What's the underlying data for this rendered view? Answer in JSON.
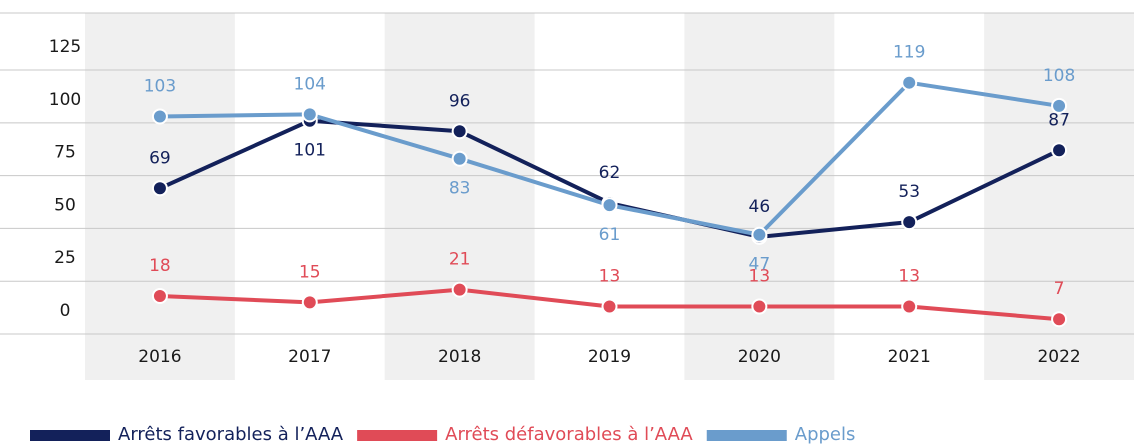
{
  "chart_data": {
    "type": "line",
    "categories": [
      "2016",
      "2017",
      "2018",
      "2019",
      "2020",
      "2021",
      "2022"
    ],
    "series": [
      {
        "name": "Arrêts favorables à l’AAA",
        "color": "#13215a",
        "values": [
          69,
          101,
          96,
          62,
          46,
          53,
          87
        ]
      },
      {
        "name": "Arrêts défavorables à l’AAA",
        "color": "#e04b57",
        "values": [
          18,
          15,
          21,
          13,
          13,
          13,
          7
        ]
      },
      {
        "name": "Appels",
        "color": "#6a9ccc",
        "values": [
          103,
          104,
          83,
          61,
          47,
          119,
          108
        ]
      }
    ],
    "ylim": [
      0,
      152
    ],
    "yticks": [
      0,
      25,
      50,
      75,
      100,
      125
    ],
    "grid": true,
    "legend": "bottom-left"
  }
}
